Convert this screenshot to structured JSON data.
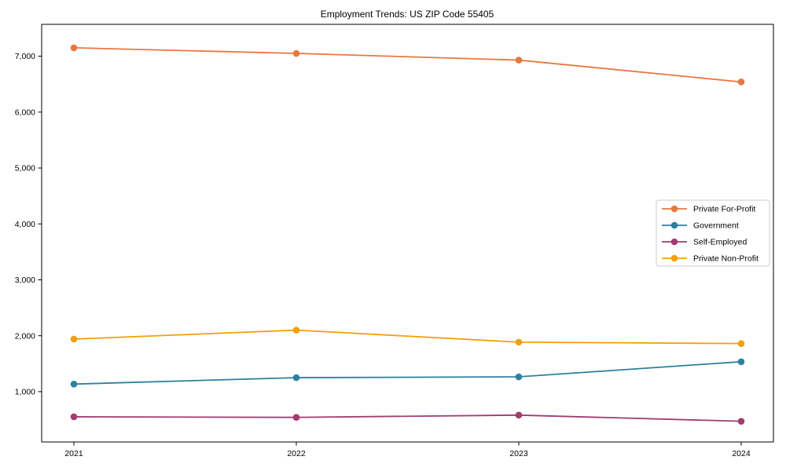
{
  "chart_data": {
    "type": "line",
    "title": "Employment Trends: US ZIP Code 55405",
    "xlabel": "",
    "ylabel": "",
    "x_tick_labels": [
      "2021",
      "2022",
      "2023",
      "2024"
    ],
    "y_ticks": [
      1000,
      2000,
      3000,
      4000,
      5000,
      6000,
      7000
    ],
    "y_tick_labels": [
      "1,000",
      "2,000",
      "3,000",
      "4,000",
      "5,000",
      "6,000",
      "7,000"
    ],
    "ylim": [
      100,
      7570
    ],
    "grid": false,
    "legend_position": "center right",
    "legend_border_color": "#cccccc",
    "axis_color": "#000000",
    "background_color": "#ffffff",
    "marker": "o",
    "series": [
      {
        "name": "Private For-Profit",
        "color": "#e8773f",
        "values": [
          7150,
          7050,
          6930,
          6540
        ]
      },
      {
        "name": "Government",
        "color": "#2f7f9f",
        "values": [
          1135,
          1250,
          1265,
          1535
        ]
      },
      {
        "name": "Self-Employed",
        "color": "#a23b72",
        "values": [
          550,
          540,
          580,
          470
        ]
      },
      {
        "name": "Private Non-Profit",
        "color": "#f4a009",
        "values": [
          1940,
          2100,
          1885,
          1860
        ]
      }
    ]
  }
}
